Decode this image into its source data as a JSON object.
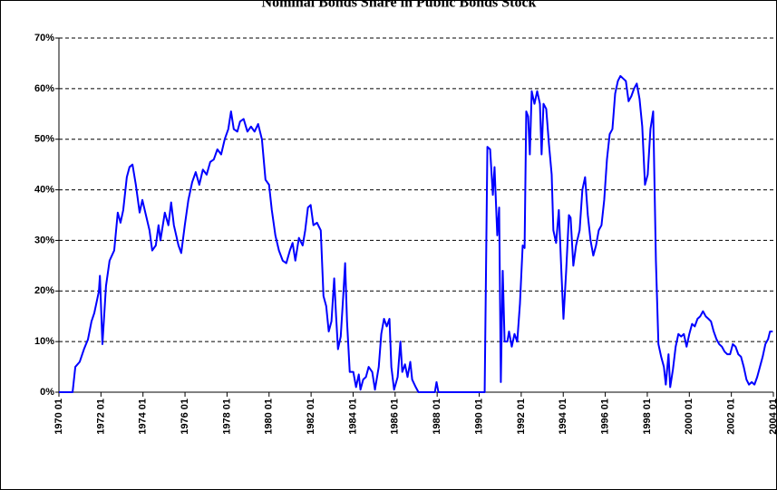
{
  "chart_data": {
    "type": "line",
    "title": "Nominal Bonds Share in Public Bonds Stock",
    "x": [
      1970.0,
      1970.3,
      1970.65,
      1970.78,
      1970.99,
      1971.2,
      1971.38,
      1971.55,
      1971.68,
      1971.9,
      1971.95,
      1972.07,
      1972.24,
      1972.41,
      1972.63,
      1972.8,
      1972.93,
      1973.06,
      1973.23,
      1973.36,
      1973.5,
      1973.66,
      1973.84,
      1973.97,
      1974.14,
      1974.31,
      1974.44,
      1974.61,
      1974.74,
      1974.83,
      1975.04,
      1975.21,
      1975.34,
      1975.47,
      1975.69,
      1975.82,
      1975.99,
      1976.16,
      1976.34,
      1976.51,
      1976.68,
      1976.85,
      1977.03,
      1977.2,
      1977.37,
      1977.54,
      1977.72,
      1977.89,
      1978.06,
      1978.19,
      1978.32,
      1978.49,
      1978.62,
      1978.79,
      1978.97,
      1979.14,
      1979.31,
      1979.48,
      1979.66,
      1979.83,
      1980.0,
      1980.13,
      1980.3,
      1980.47,
      1980.65,
      1980.82,
      1980.99,
      1981.12,
      1981.25,
      1981.42,
      1981.6,
      1981.72,
      1981.85,
      1981.98,
      1982.11,
      1982.28,
      1982.46,
      1982.59,
      1982.72,
      1982.84,
      1982.97,
      1983.1,
      1983.19,
      1983.28,
      1983.41,
      1983.53,
      1983.62,
      1983.71,
      1983.84,
      1984.01,
      1984.14,
      1984.27,
      1984.35,
      1984.48,
      1984.61,
      1984.74,
      1984.91,
      1985.04,
      1985.22,
      1985.34,
      1985.47,
      1985.6,
      1985.73,
      1985.82,
      1985.95,
      1986.12,
      1986.25,
      1986.34,
      1986.47,
      1986.59,
      1986.72,
      1986.81,
      1986.98,
      1987.11,
      1987.89,
      1987.97,
      1988.06,
      1990.26,
      1990.39,
      1990.52,
      1990.65,
      1990.73,
      1990.86,
      1990.95,
      1991.03,
      1991.12,
      1991.21,
      1991.34,
      1991.42,
      1991.55,
      1991.68,
      1991.81,
      1991.94,
      1992.07,
      1992.16,
      1992.24,
      1992.33,
      1992.41,
      1992.5,
      1992.63,
      1992.76,
      1992.89,
      1992.97,
      1993.06,
      1993.19,
      1993.32,
      1993.45,
      1993.53,
      1993.66,
      1993.79,
      1993.92,
      1994.01,
      1994.14,
      1994.27,
      1994.35,
      1994.48,
      1994.61,
      1994.78,
      1994.91,
      1995.04,
      1995.17,
      1995.3,
      1995.43,
      1995.56,
      1995.69,
      1995.82,
      1995.95,
      1996.08,
      1996.21,
      1996.34,
      1996.47,
      1996.6,
      1996.72,
      1996.85,
      1996.98,
      1997.11,
      1997.24,
      1997.37,
      1997.5,
      1997.63,
      1997.76,
      1997.89,
      1998.02,
      1998.15,
      1998.28,
      1998.41,
      1998.53,
      1998.66,
      1998.79,
      1998.88,
      1999.01,
      1999.09,
      1999.22,
      1999.35,
      1999.48,
      1999.61,
      1999.74,
      1999.87,
      2000.0,
      2000.13,
      2000.26,
      2000.39,
      2000.52,
      2000.65,
      2000.78,
      2000.91,
      2001.03,
      2001.16,
      2001.29,
      2001.42,
      2001.55,
      2001.68,
      2001.81,
      2001.94,
      2002.07,
      2002.2,
      2002.33,
      2002.46,
      2002.59,
      2002.72,
      2002.84,
      2002.97,
      2003.1,
      2003.23,
      2003.36,
      2003.49,
      2003.62,
      2003.75,
      2003.84,
      2003.97
    ],
    "series": [
      {
        "color": "#0000ff",
        "values": [
          0,
          0,
          0,
          5,
          6,
          8.6,
          10.4,
          14,
          15.6,
          19.9,
          23,
          9.5,
          21,
          26,
          28,
          35.5,
          33.5,
          36,
          42.5,
          44.5,
          45,
          41,
          35.5,
          38,
          35,
          32,
          28,
          29,
          33,
          30,
          35.5,
          33,
          37.5,
          33,
          29,
          27.5,
          33,
          38,
          41.5,
          43.5,
          41,
          44,
          43,
          45.5,
          46,
          48,
          47,
          50,
          52,
          55.5,
          52,
          51.5,
          53.5,
          54,
          51.5,
          52.5,
          51.5,
          53,
          50,
          42,
          41,
          36,
          31,
          28,
          26,
          25.5,
          28,
          29.5,
          26,
          30.5,
          29,
          32,
          36.5,
          37,
          33,
          33.5,
          32,
          19,
          17,
          12,
          14,
          22.5,
          15,
          8.5,
          11,
          19,
          25.5,
          14,
          4,
          4,
          1,
          3.5,
          0.5,
          2.5,
          3,
          5,
          4,
          0.5,
          5,
          11.5,
          14.5,
          13,
          14.5,
          5,
          0.5,
          3,
          10,
          4,
          5.5,
          3,
          6,
          2.5,
          1,
          0,
          0,
          2,
          0,
          0,
          48.5,
          48,
          39,
          44.5,
          31,
          36.5,
          2,
          24,
          10,
          10,
          12,
          9,
          11.5,
          10,
          17.5,
          29,
          28.5,
          55.5,
          54.5,
          47,
          59.5,
          57,
          59.5,
          57,
          47,
          57,
          56,
          49,
          43,
          32,
          29.5,
          36,
          23,
          14.5,
          24,
          35,
          34.5,
          25,
          29,
          32,
          40,
          42.5,
          35,
          30,
          27,
          29,
          32,
          33,
          38,
          46,
          51,
          52,
          59,
          61.5,
          62.5,
          62,
          61.5,
          57.5,
          58.5,
          60,
          61,
          58,
          52.5,
          41,
          43,
          52,
          55.5,
          26,
          9.5,
          7,
          5,
          1.5,
          7.5,
          1,
          4.5,
          9,
          11.5,
          11,
          11.5,
          9,
          11.5,
          13.5,
          13,
          14.5,
          15,
          16,
          15,
          14.5,
          14,
          12,
          10.5,
          9.5,
          9,
          8,
          7.5,
          7.5,
          9.5,
          9,
          7.5,
          7,
          5,
          2.5,
          1.5,
          2,
          1.5,
          3,
          5,
          7,
          9.5,
          10.5,
          12,
          12
        ]
      }
    ],
    "xlim": [
      1970,
      2004
    ],
    "xticks": [
      {
        "value": 1970,
        "label": "1970 01"
      },
      {
        "value": 1972,
        "label": "1972 01"
      },
      {
        "value": 1974,
        "label": "1974 01"
      },
      {
        "value": 1976,
        "label": "1976 01"
      },
      {
        "value": 1978,
        "label": "1978 01"
      },
      {
        "value": 1980,
        "label": "1980 01"
      },
      {
        "value": 1982,
        "label": "1982 01"
      },
      {
        "value": 1984,
        "label": "1984 01"
      },
      {
        "value": 1986,
        "label": "1986 01"
      },
      {
        "value": 1988,
        "label": "1988 01"
      },
      {
        "value": 1990,
        "label": "1990 01"
      },
      {
        "value": 1992,
        "label": "1992 01"
      },
      {
        "value": 1994,
        "label": "1994 01"
      },
      {
        "value": 1996,
        "label": "1996 01"
      },
      {
        "value": 1998,
        "label": "1998 01"
      },
      {
        "value": 2000,
        "label": "2000 01"
      },
      {
        "value": 2002,
        "label": "2002 01"
      },
      {
        "value": 2004,
        "label": "2004 01"
      }
    ],
    "ylim": [
      0,
      70
    ],
    "yticks": [
      {
        "value": 0,
        "label": "0%"
      },
      {
        "value": 10,
        "label": "10%"
      },
      {
        "value": 20,
        "label": "20%"
      },
      {
        "value": 30,
        "label": "30%"
      },
      {
        "value": 40,
        "label": "40%"
      },
      {
        "value": 50,
        "label": "50%"
      },
      {
        "value": 60,
        "label": "60%"
      },
      {
        "value": 70,
        "label": "70%"
      }
    ],
    "grid": true
  }
}
